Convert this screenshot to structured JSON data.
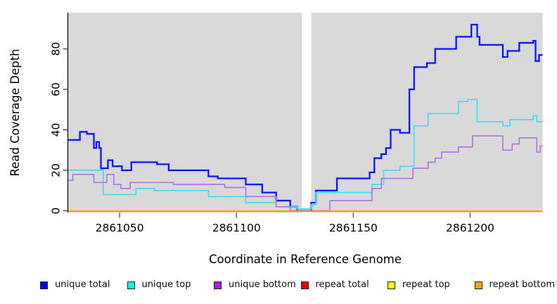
{
  "chart_data": {
    "type": "line",
    "step": true,
    "title": "",
    "xlabel": "Coordinate in Reference Genome",
    "ylabel": "Read Coverage Depth",
    "xlim": [
      2861028,
      2861231
    ],
    "ylim": [
      0,
      95
    ],
    "x_ticks": [
      "2861050",
      "2861100",
      "2861150",
      "2861200"
    ],
    "x_tick_values": [
      2861050,
      2861100,
      2861150,
      2861200
    ],
    "y_ticks": [
      "0",
      "20",
      "40",
      "60",
      "80"
    ],
    "y_tick_values": [
      0,
      20,
      40,
      60,
      80
    ],
    "grid": false,
    "panel_bg": "#D9D9D9",
    "no_data_gap_x": [
      2861128,
      2861132
    ],
    "legend_position": "bottom",
    "series": [
      {
        "name": "unique total",
        "color": "#0D0DF0",
        "halo": "#9FAFFA",
        "width": 2,
        "points": [
          [
            2861028,
            35
          ],
          [
            2861033,
            39
          ],
          [
            2861036,
            38
          ],
          [
            2861039,
            31
          ],
          [
            2861040,
            34
          ],
          [
            2861041.2,
            31
          ],
          [
            2861042,
            21
          ],
          [
            2861045,
            25
          ],
          [
            2861047,
            22
          ],
          [
            2861051,
            20
          ],
          [
            2861055,
            24
          ],
          [
            2861066,
            23
          ],
          [
            2861071,
            20
          ],
          [
            2861088,
            17
          ],
          [
            2861092,
            16
          ],
          [
            2861104,
            13
          ],
          [
            2861111,
            9
          ],
          [
            2861117,
            5
          ],
          [
            2861123,
            2
          ],
          [
            2861126,
            0
          ],
          [
            2861132,
            4
          ],
          [
            2861134,
            10
          ],
          [
            2861143,
            16
          ],
          [
            2861157,
            19
          ],
          [
            2861159,
            26
          ],
          [
            2861162,
            28
          ],
          [
            2861164,
            31
          ],
          [
            2861166,
            40
          ],
          [
            2861170,
            38.5
          ],
          [
            2861174,
            60
          ],
          [
            2861176,
            71
          ],
          [
            2861181.5,
            73
          ],
          [
            2861185,
            80
          ],
          [
            2861194,
            86
          ],
          [
            2861200.5,
            92
          ],
          [
            2861203,
            86
          ],
          [
            2861204,
            82
          ],
          [
            2861214,
            76
          ],
          [
            2861216,
            79
          ],
          [
            2861221,
            83
          ],
          [
            2861227,
            84
          ],
          [
            2861228,
            74
          ],
          [
            2861229.5,
            77
          ]
        ]
      },
      {
        "name": "unique top",
        "color": "#45DCEF",
        "halo": null,
        "width": 1.7,
        "points": [
          [
            2861028,
            20
          ],
          [
            2861043,
            8
          ],
          [
            2861057,
            11
          ],
          [
            2861065,
            10
          ],
          [
            2861088,
            7
          ],
          [
            2861104,
            4
          ],
          [
            2861117,
            2
          ],
          [
            2861126,
            1
          ],
          [
            2861132,
            3
          ],
          [
            2861134,
            9
          ],
          [
            2861158,
            13
          ],
          [
            2861163,
            20
          ],
          [
            2861170,
            22
          ],
          [
            2861176,
            42
          ],
          [
            2861182,
            48
          ],
          [
            2861195,
            54
          ],
          [
            2861199,
            55
          ],
          [
            2861203,
            44
          ],
          [
            2861214,
            42
          ],
          [
            2861217,
            45
          ],
          [
            2861227,
            47
          ],
          [
            2861228.5,
            44
          ]
        ]
      },
      {
        "name": "unique bottom",
        "color": "#B277E5",
        "halo": null,
        "width": 1.7,
        "points": [
          [
            2861028,
            15
          ],
          [
            2861030,
            18
          ],
          [
            2861039,
            14
          ],
          [
            2861044.5,
            18
          ],
          [
            2861047.5,
            13
          ],
          [
            2861050.5,
            11
          ],
          [
            2861054.5,
            14
          ],
          [
            2861073,
            13
          ],
          [
            2861095,
            11.5
          ],
          [
            2861104,
            7
          ],
          [
            2861117,
            2
          ],
          [
            2861123,
            0
          ],
          [
            2861140,
            5
          ],
          [
            2861158,
            11
          ],
          [
            2861162,
            16
          ],
          [
            2861175.5,
            21
          ],
          [
            2861182,
            24
          ],
          [
            2861185,
            26
          ],
          [
            2861187.8,
            29
          ],
          [
            2861195,
            31.5
          ],
          [
            2861201,
            37
          ],
          [
            2861214,
            30
          ],
          [
            2861218,
            33
          ],
          [
            2861221,
            36
          ],
          [
            2861228.5,
            29
          ],
          [
            2861230,
            32
          ]
        ]
      },
      {
        "name": "repeat total",
        "color": "#E80000",
        "halo": null,
        "width": 1.7,
        "points": [
          [
            2861028,
            0
          ]
        ]
      },
      {
        "name": "repeat top",
        "color": "#FFFF00",
        "halo": null,
        "width": 1.7,
        "points": [
          [
            2861028,
            0
          ]
        ]
      },
      {
        "name": "repeat bottom",
        "color": "#FF9C00",
        "halo": null,
        "width": 2,
        "points": [
          [
            2861028,
            0
          ]
        ]
      }
    ]
  },
  "legend": {
    "items": [
      {
        "label": "unique total",
        "swatch": "#0000F5"
      },
      {
        "label": "unique top",
        "swatch": "#00F5F5"
      },
      {
        "label": "unique bottom",
        "swatch": "#A020F0"
      },
      {
        "label": "repeat total",
        "swatch": "#E80000"
      },
      {
        "label": "repeat top",
        "swatch": "#FFFF00"
      },
      {
        "label": "repeat bottom",
        "swatch": "#FFA500"
      }
    ]
  }
}
